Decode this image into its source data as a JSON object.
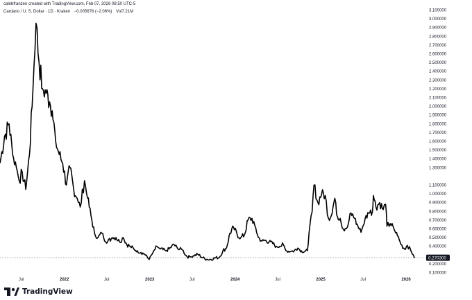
{
  "header": {
    "attribution": "calebfranzen created with TradingView.com, Feb 07, 2026 08:50 UTC-5"
  },
  "legend": {
    "symbol": "Cardano / U. S. Dollar · 1D · Kraken",
    "change": "−0.005678 (−2.06%)",
    "volume": "Vol7.21M"
  },
  "logo_text": "TradingView",
  "colors": {
    "line": "#000000",
    "price_box": "#131722",
    "axis_text": "#131722",
    "dotted": "#9598a1"
  },
  "chart_data": {
    "type": "line",
    "title": "",
    "xlabel": "",
    "ylabel": "",
    "x_ticks": [
      "Jul",
      "2022",
      "Jul",
      "2023",
      "Jul",
      "2024",
      "Jul",
      "2025",
      "Jul",
      "2026"
    ],
    "x_tick_dates": [
      "2021-07-01",
      "2022-01-01",
      "2022-07-01",
      "2023-01-01",
      "2023-07-01",
      "2024-01-01",
      "2024-07-01",
      "2025-01-01",
      "2025-07-01",
      "2026-01-01"
    ],
    "y_ticks": [
      "3.100000",
      "3.000000",
      "2.900000",
      "2.800000",
      "2.700000",
      "2.600000",
      "2.500000",
      "2.400000",
      "2.300000",
      "2.200000",
      "2.100000",
      "2.000000",
      "1.900000",
      "1.800000",
      "1.700000",
      "1.600000",
      "1.500000",
      "1.400000",
      "1.300000",
      "1.100000",
      "1.000000",
      "0.900000",
      "0.800000",
      "0.700000",
      "0.600000",
      "0.500000",
      "0.400000",
      "0.200000",
      "0.100000"
    ],
    "ylim": [
      0.08,
      3.12
    ],
    "last_price": 0.27,
    "last_price_label": "0.270300",
    "grid": false,
    "series": [
      {
        "x": [
          "2021-04-01",
          "2021-04-20",
          "2021-05-10",
          "2021-05-25",
          "2021-06-10",
          "2021-06-22",
          "2021-07-05",
          "2021-07-20",
          "2021-08-05",
          "2021-08-20",
          "2021-09-02",
          "2021-09-15",
          "2021-09-30",
          "2021-10-15",
          "2021-10-30",
          "2021-11-10",
          "2021-11-25",
          "2021-12-10",
          "2021-12-25",
          "2022-01-10",
          "2022-01-25",
          "2022-02-10",
          "2022-02-25",
          "2022-03-10",
          "2022-03-28",
          "2022-04-10",
          "2022-04-25",
          "2022-05-10",
          "2022-05-25",
          "2022-06-10",
          "2022-06-18",
          "2022-07-05",
          "2022-07-25",
          "2022-08-10",
          "2022-08-25",
          "2022-09-10",
          "2022-09-25",
          "2022-10-10",
          "2022-10-25",
          "2022-11-09",
          "2022-11-25",
          "2022-12-10",
          "2022-12-30",
          "2023-01-15",
          "2023-02-01",
          "2023-02-15",
          "2023-03-10",
          "2023-03-25",
          "2023-04-15",
          "2023-05-01",
          "2023-05-20",
          "2023-06-10",
          "2023-06-25",
          "2023-07-10",
          "2023-07-25",
          "2023-08-15",
          "2023-09-01",
          "2023-09-20",
          "2023-10-10",
          "2023-10-25",
          "2023-11-10",
          "2023-11-25",
          "2023-12-10",
          "2023-12-25",
          "2024-01-10",
          "2024-01-25",
          "2024-02-10",
          "2024-02-25",
          "2024-03-13",
          "2024-03-25",
          "2024-04-10",
          "2024-04-25",
          "2024-05-10",
          "2024-05-25",
          "2024-06-10",
          "2024-06-25",
          "2024-07-10",
          "2024-07-25",
          "2024-08-05",
          "2024-08-25",
          "2024-09-10",
          "2024-09-25",
          "2024-10-10",
          "2024-10-25",
          "2024-11-05",
          "2024-11-12",
          "2024-11-25",
          "2024-12-03",
          "2024-12-20",
          "2025-01-05",
          "2025-01-20",
          "2025-02-03",
          "2025-02-15",
          "2025-03-02",
          "2025-03-10",
          "2025-03-25",
          "2025-04-07",
          "2025-04-25",
          "2025-05-10",
          "2025-05-25",
          "2025-06-10",
          "2025-06-22",
          "2025-07-10",
          "2025-07-25",
          "2025-08-10",
          "2025-08-14",
          "2025-08-25",
          "2025-09-10",
          "2025-09-25",
          "2025-10-05",
          "2025-10-11",
          "2025-10-25",
          "2025-11-10",
          "2025-11-25",
          "2025-12-10",
          "2025-12-25",
          "2026-01-06",
          "2026-01-20",
          "2026-02-01",
          "2026-02-07"
        ],
        "y": [
          1.35,
          1.65,
          1.8,
          1.45,
          1.3,
          1.15,
          1.25,
          1.05,
          1.45,
          2.2,
          2.95,
          2.5,
          2.2,
          2.15,
          2.05,
          1.95,
          1.6,
          1.45,
          1.35,
          1.1,
          1.3,
          1.05,
          0.95,
          0.85,
          1.15,
          0.95,
          0.75,
          0.55,
          0.5,
          0.55,
          0.5,
          0.45,
          0.5,
          0.5,
          0.45,
          0.5,
          0.42,
          0.4,
          0.37,
          0.35,
          0.33,
          0.31,
          0.25,
          0.33,
          0.4,
          0.37,
          0.35,
          0.37,
          0.42,
          0.37,
          0.36,
          0.28,
          0.28,
          0.29,
          0.31,
          0.27,
          0.25,
          0.25,
          0.27,
          0.27,
          0.35,
          0.38,
          0.55,
          0.62,
          0.53,
          0.5,
          0.53,
          0.7,
          0.72,
          0.64,
          0.5,
          0.46,
          0.47,
          0.45,
          0.43,
          0.4,
          0.4,
          0.42,
          0.35,
          0.34,
          0.35,
          0.38,
          0.35,
          0.34,
          0.35,
          0.55,
          0.79,
          1.1,
          0.9,
          1.0,
          0.98,
          0.72,
          0.75,
          0.95,
          0.76,
          0.72,
          0.6,
          0.62,
          0.78,
          0.72,
          0.62,
          0.56,
          0.72,
          0.78,
          0.8,
          0.98,
          0.85,
          0.9,
          0.82,
          0.88,
          0.63,
          0.66,
          0.6,
          0.52,
          0.42,
          0.37,
          0.41,
          0.36,
          0.3,
          0.27
        ]
      }
    ]
  }
}
